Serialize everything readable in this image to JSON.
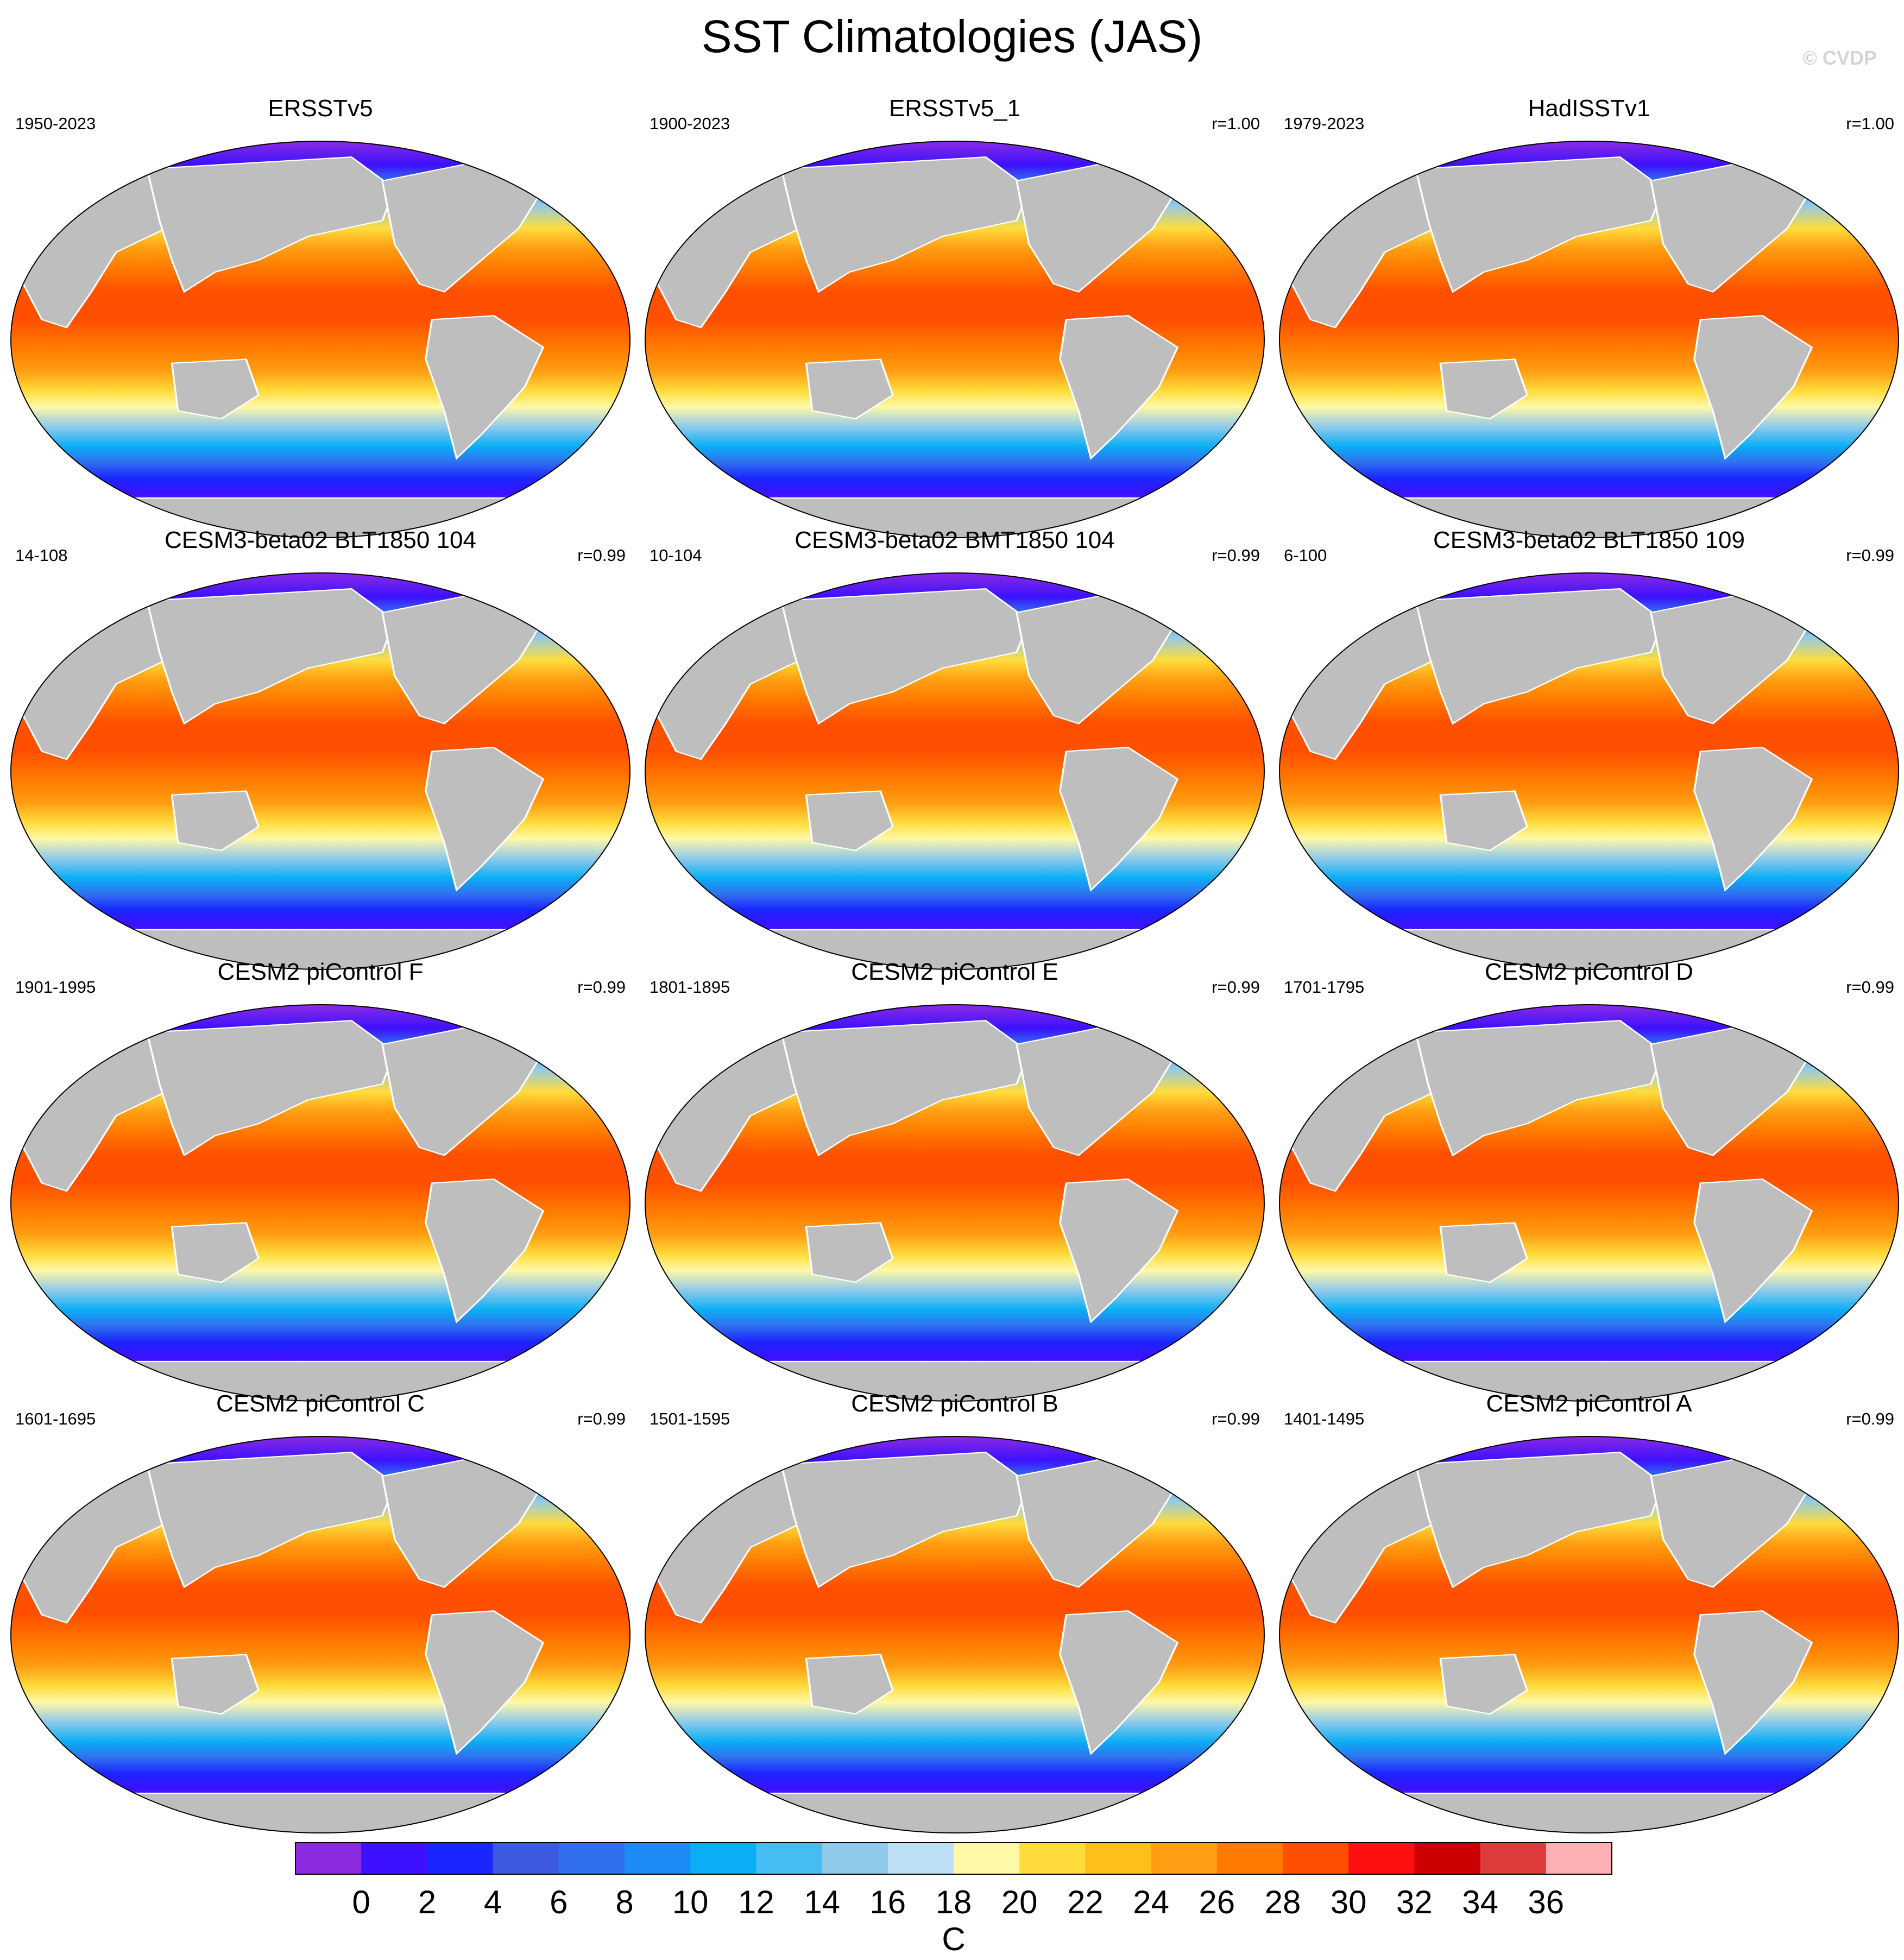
{
  "title": "SST Climatologies (JAS)",
  "watermark": "© CVDP",
  "panels": [
    {
      "title": "ERSSTv5",
      "years": "1950-2023",
      "corr": ""
    },
    {
      "title": "ERSSTv5_1",
      "years": "1900-2023",
      "corr": "r=1.00"
    },
    {
      "title": "HadISSTv1",
      "years": "1979-2023",
      "corr": "r=1.00"
    },
    {
      "title": "CESM3-beta02 BLT1850 104",
      "years": "14-108",
      "corr": "r=0.99"
    },
    {
      "title": "CESM3-beta02 BMT1850 104",
      "years": "10-104",
      "corr": "r=0.99"
    },
    {
      "title": "CESM3-beta02 BLT1850 109",
      "years": "6-100",
      "corr": "r=0.99"
    },
    {
      "title": "CESM2 piControl F",
      "years": "1901-1995",
      "corr": "r=0.99"
    },
    {
      "title": "CESM2 piControl E",
      "years": "1801-1895",
      "corr": "r=0.99"
    },
    {
      "title": "CESM2 piControl D",
      "years": "1701-1795",
      "corr": "r=0.99"
    },
    {
      "title": "CESM2 piControl C",
      "years": "1601-1695",
      "corr": "r=0.99"
    },
    {
      "title": "CESM2 piControl B",
      "years": "1501-1595",
      "corr": "r=0.99"
    },
    {
      "title": "CESM2 piControl A",
      "years": "1401-1495",
      "corr": "r=0.99"
    }
  ],
  "colorbar": {
    "label": "C",
    "ticks": [
      "0",
      "2",
      "4",
      "6",
      "8",
      "10",
      "12",
      "14",
      "16",
      "18",
      "20",
      "22",
      "24",
      "26",
      "28",
      "30",
      "32",
      "34",
      "36"
    ],
    "colors": [
      "#8a2be2",
      "#3d10ff",
      "#1a26ff",
      "#3c5ae0",
      "#3070ef",
      "#1d8bf5",
      "#0aaef5",
      "#46bdf2",
      "#90caea",
      "#bde0f6",
      "#fff8a6",
      "#ffdc3c",
      "#ffbf1a",
      "#ff9e12",
      "#ff7a00",
      "#ff4f00",
      "#ff1010",
      "#cc0000",
      "#dc3c3c",
      "#ffb0b5"
    ]
  }
}
